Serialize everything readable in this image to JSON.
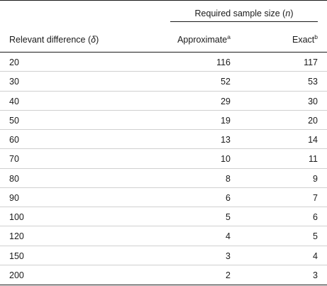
{
  "table": {
    "group_header": "Required sample size (n)",
    "columns": {
      "difference": "Relevant difference (δ)",
      "approximate": "Approximate",
      "approximate_note": "a",
      "exact": "Exact",
      "exact_note": "b"
    },
    "rows": [
      {
        "difference": "20",
        "approximate": "116",
        "exact": "117"
      },
      {
        "difference": "30",
        "approximate": "52",
        "exact": "53"
      },
      {
        "difference": "40",
        "approximate": "29",
        "exact": "30"
      },
      {
        "difference": "50",
        "approximate": "19",
        "exact": "20"
      },
      {
        "difference": "60",
        "approximate": "13",
        "exact": "14"
      },
      {
        "difference": "70",
        "approximate": "10",
        "exact": "11"
      },
      {
        "difference": "80",
        "approximate": "8",
        "exact": "9"
      },
      {
        "difference": "90",
        "approximate": "6",
        "exact": "7"
      },
      {
        "difference": "100",
        "approximate": "5",
        "exact": "6"
      },
      {
        "difference": "120",
        "approximate": "4",
        "exact": "5"
      },
      {
        "difference": "150",
        "approximate": "3",
        "exact": "4"
      },
      {
        "difference": "200",
        "approximate": "2",
        "exact": "3"
      }
    ]
  }
}
